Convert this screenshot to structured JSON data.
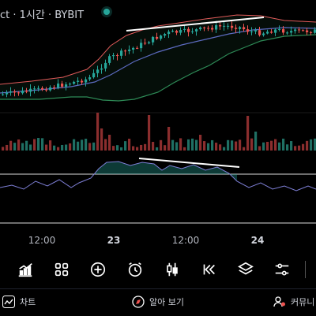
{
  "header": {
    "title": "ct · 1시간 · BYBIT",
    "live_indicator_color": "#26a69a"
  },
  "time_axis": {
    "labels": [
      {
        "text": "12:00",
        "bold": false
      },
      {
        "text": "23",
        "bold": true
      },
      {
        "text": "12:00",
        "bold": false
      },
      {
        "text": "24",
        "bold": true
      }
    ]
  },
  "toolbar": {
    "tools": [
      {
        "name": "indicators-icon"
      },
      {
        "name": "grid-layout-icon"
      },
      {
        "name": "add-icon"
      },
      {
        "name": "alarm-clock-icon"
      },
      {
        "name": "candle-type-icon"
      },
      {
        "name": "replay-icon"
      },
      {
        "name": "layers-icon"
      },
      {
        "name": "settings-sliders-icon"
      }
    ]
  },
  "bottom_nav": {
    "chart_label": "차트",
    "explore_label": "알아 보기",
    "community_label": "커뮤니"
  },
  "colors": {
    "up": "#26a69a",
    "down": "#ef5350",
    "upper_band": "#e05a5a",
    "lower_band": "#2e8b57",
    "basis": "#5c6bc0",
    "oscillator": "#7e7fd6"
  }
}
